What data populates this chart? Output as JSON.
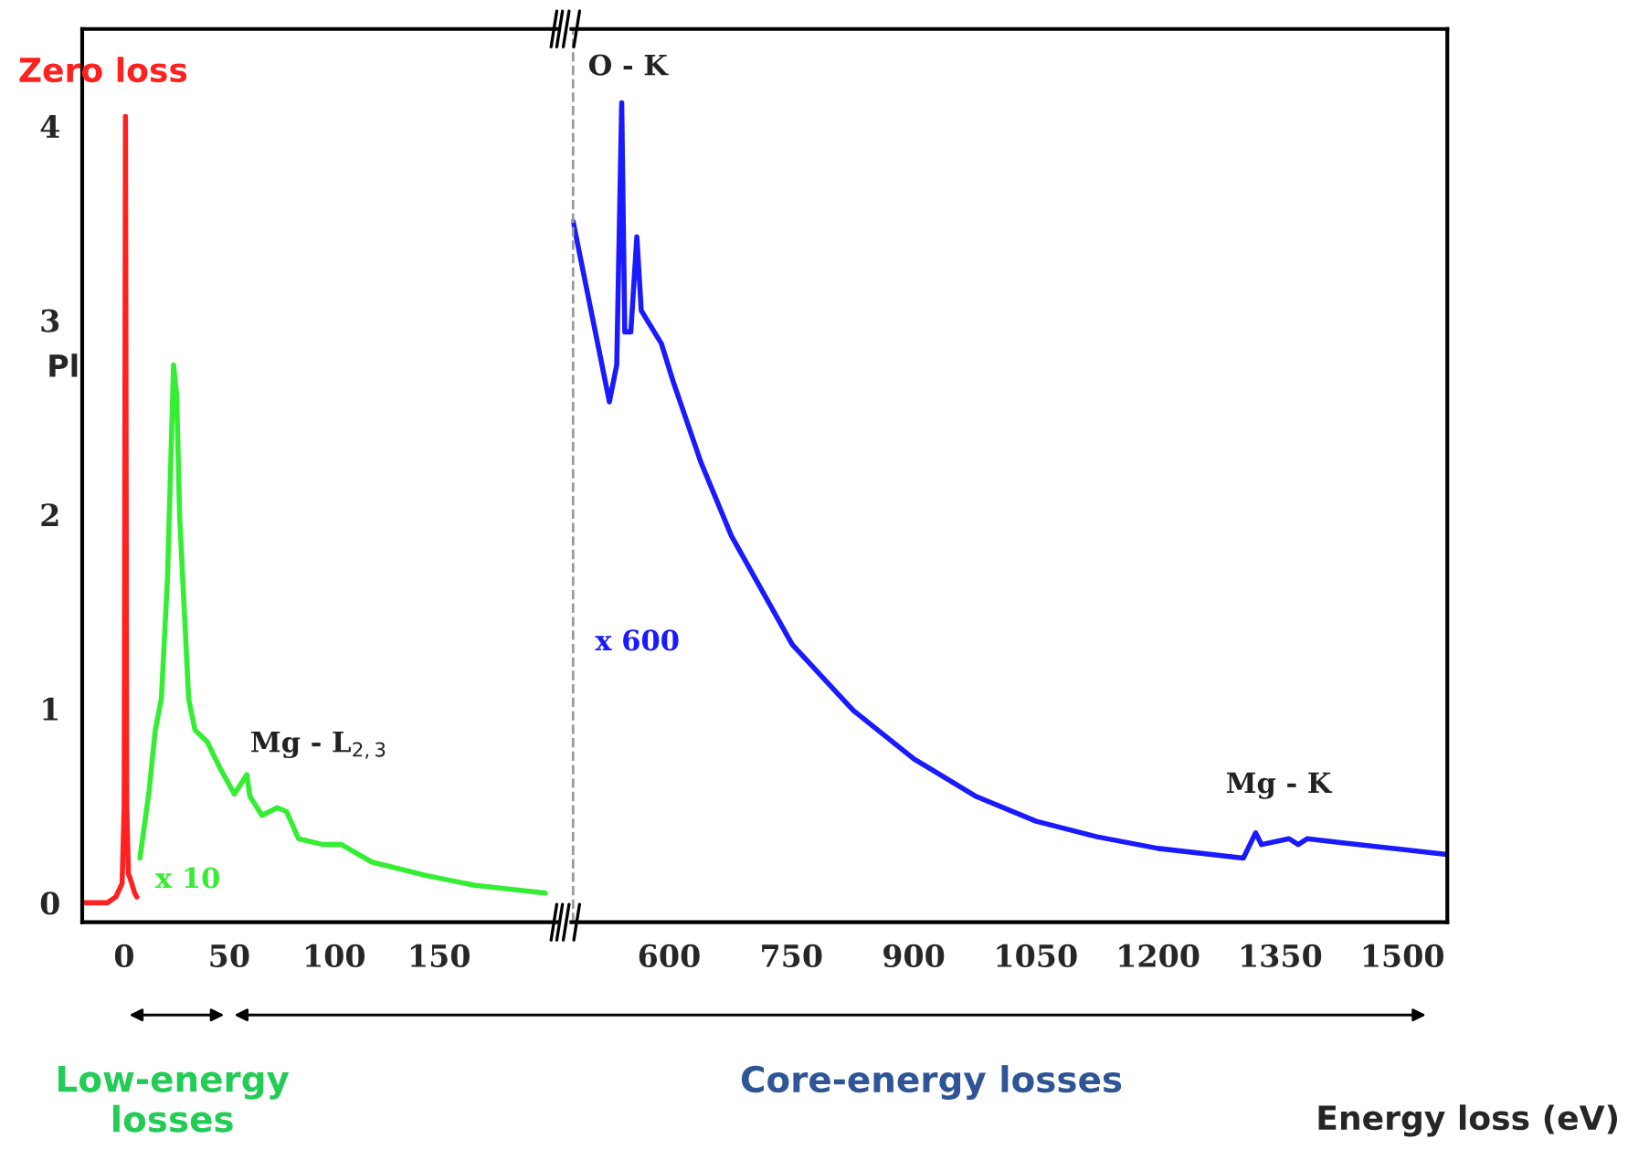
{
  "chart_data": [
    {
      "type": "line",
      "ylabel": "Pl",
      "xlim": [
        -20,
        206
      ],
      "ylim": [
        -0.1,
        4.5
      ],
      "xticks": [
        0,
        50,
        100,
        150
      ],
      "yticks": [
        0,
        1,
        2,
        3,
        4
      ],
      "series": [
        {
          "color": "#ff2020",
          "x": [
            -20,
            -8,
            -4,
            -1,
            0,
            0.6,
            1.2,
            2,
            3,
            5,
            6
          ],
          "values": [
            0,
            0,
            0.03,
            0.1,
            0.5,
            4.05,
            0.5,
            0.15,
            0.12,
            0.05,
            0.03
          ]
        },
        {
          "color": "#33ee33",
          "x": [
            7.5,
            11.9,
            14.8,
            17.7,
            20.6,
            23.5,
            25,
            26.4,
            30.7,
            33.7,
            39.5,
            45.3,
            52.5,
            58.4,
            59.8,
            65.6,
            72.9,
            77.3,
            83,
            94.7,
            103.4,
            117.9,
            144,
            167,
            200.6
          ],
          "values": [
            0.23,
            0.58,
            0.89,
            1.05,
            1.67,
            2.77,
            2.61,
            1.99,
            1.05,
            0.89,
            0.83,
            0.7,
            0.56,
            0.66,
            0.55,
            0.45,
            0.49,
            0.47,
            0.33,
            0.3,
            0.3,
            0.21,
            0.14,
            0.09,
            0.05
          ]
        }
      ],
      "annotations": [
        "Zero loss",
        "x 10",
        "Mg - L$_{2,3}$",
        "Low-energy\nlosses"
      ],
      "tick_labels": "xy",
      "grid": false,
      "legend": false
    },
    {
      "type": "line",
      "xlabel": "Energy loss (eV)",
      "xlim": [
        480,
        1555
      ],
      "ylim": [
        -0.1,
        4.5
      ],
      "xticks": [
        600,
        750,
        900,
        1050,
        1200,
        1350,
        1500
      ],
      "series": [
        {
          "color": "#1a1aff",
          "x": [
            482,
            526.6,
            535.6,
            541.7,
            545.5,
            552.9,
            560.3,
            565.7,
            590.4,
            605.2,
            638.8,
            676.3,
            751,
            826,
            900.7,
            975.5,
            1050.4,
            1125,
            1200,
            1304.7,
            1319.7,
            1327,
            1360.8,
            1372,
            1383,
            1424,
            1552
          ],
          "values": [
            3.51,
            2.58,
            2.77,
            4.12,
            2.94,
            2.94,
            3.43,
            3.05,
            2.88,
            2.68,
            2.27,
            1.89,
            1.33,
            0.99,
            0.74,
            0.55,
            0.42,
            0.34,
            0.28,
            0.23,
            0.36,
            0.3,
            0.33,
            0.3,
            0.33,
            0.31,
            0.25
          ]
        }
      ],
      "ref_lines": [
        {
          "axis": "x",
          "value": 482,
          "color": "#999999",
          "line_style": "dashed"
        }
      ],
      "annotations": [
        "O - K",
        "x 600",
        "Mg - K",
        "Core-energy losses"
      ],
      "tick_labels": "x",
      "grid": false,
      "legend": false
    }
  ]
}
